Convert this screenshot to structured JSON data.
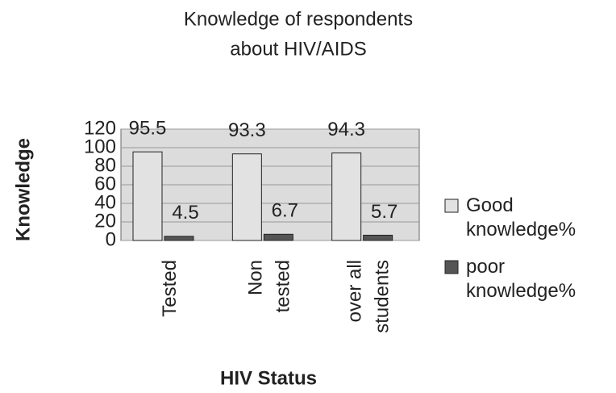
{
  "chart_data": {
    "type": "bar",
    "title": [
      "Knowledge of respondents",
      "about HIV/AIDS"
    ],
    "y_label": "Knowledge",
    "x_label": "HIV Status",
    "categories": [
      [
        "Tested"
      ],
      [
        "Non",
        "tested"
      ],
      [
        "over all",
        "students"
      ]
    ],
    "series": [
      {
        "name": "Good knowledge%",
        "color": "#e2e2e2",
        "values": [
          95.5,
          93.3,
          94.3
        ]
      },
      {
        "name": "poor knowledge%",
        "color": "#555555",
        "values": [
          4.5,
          6.7,
          5.7
        ]
      }
    ],
    "ylim": [
      0,
      120
    ],
    "yticks": [
      0,
      20,
      40,
      60,
      80,
      100,
      120
    ],
    "grid": true
  }
}
